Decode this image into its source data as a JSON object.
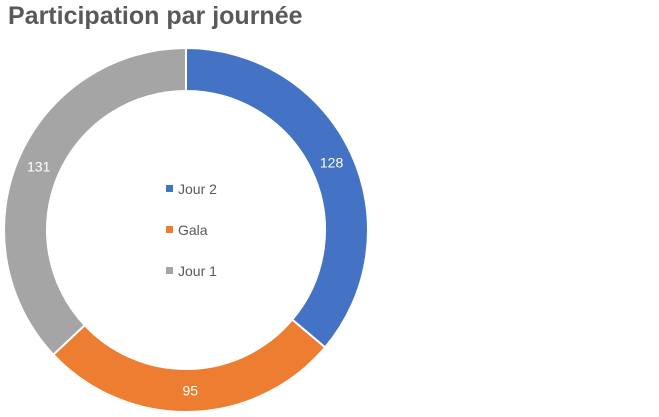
{
  "chart_data": {
    "type": "pie",
    "title": "Participation par journée",
    "series": [
      {
        "name": "Jour 2",
        "value": 128,
        "color": "#4472C4"
      },
      {
        "name": "Gala",
        "value": 95,
        "color": "#ED7D31"
      },
      {
        "name": "Jour 1",
        "value": 131,
        "color": "#A5A5A5"
      }
    ],
    "legend_position": "center",
    "data_labels": true
  }
}
